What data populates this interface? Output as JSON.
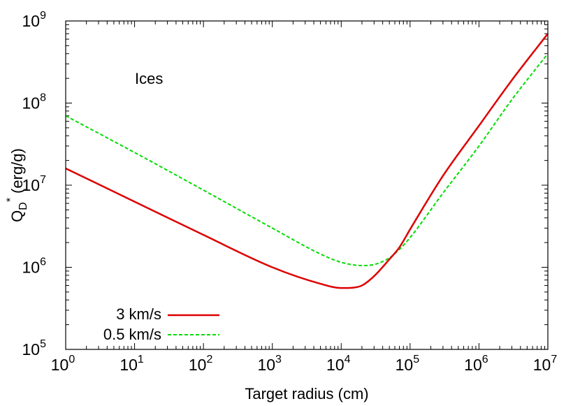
{
  "chart_data": {
    "type": "line",
    "title": "",
    "xlabel": "Target radius (cm)",
    "ylabel": "Q_D^* (erg/g)",
    "ylabel_parts": {
      "base": "Q",
      "sub": "D",
      "sup": "*",
      "unit": "(erg/g)"
    },
    "xscale": "log",
    "yscale": "log",
    "xlim": [
      1,
      10000000
    ],
    "ylim": [
      100000,
      1000000000
    ],
    "x_ticks": [
      {
        "base": "10",
        "exp": "0"
      },
      {
        "base": "10",
        "exp": "1"
      },
      {
        "base": "10",
        "exp": "2"
      },
      {
        "base": "10",
        "exp": "3"
      },
      {
        "base": "10",
        "exp": "4"
      },
      {
        "base": "10",
        "exp": "5"
      },
      {
        "base": "10",
        "exp": "6"
      },
      {
        "base": "10",
        "exp": "7"
      }
    ],
    "y_ticks": [
      {
        "base": "10",
        "exp": "5"
      },
      {
        "base": "10",
        "exp": "6"
      },
      {
        "base": "10",
        "exp": "7"
      },
      {
        "base": "10",
        "exp": "8"
      },
      {
        "base": "10",
        "exp": "9"
      }
    ],
    "grid": false,
    "legend_position": "bottom-left",
    "annotations": [
      {
        "text": "Ices",
        "x": 10,
        "y": 300000000
      }
    ],
    "series": [
      {
        "name": "3 km/s",
        "color": "#dd0000",
        "dash": "solid",
        "x": [
          1,
          10,
          100,
          1000,
          5000,
          10000,
          15000,
          20000,
          30000,
          50000,
          70000,
          100000,
          300000,
          1000000,
          3000000,
          10000000
        ],
        "y": [
          16000000,
          6300000,
          2480000,
          1000000,
          630000,
          560000,
          565000,
          600000,
          780000,
          1250000,
          1750000,
          2900000,
          13000000,
          53000000,
          190000000,
          700000000
        ]
      },
      {
        "name": "0.5 km/s",
        "color": "#00dd00",
        "dash": "dashed",
        "x": [
          1,
          10,
          100,
          1000,
          5000,
          10000,
          20000,
          30000,
          50000,
          70000,
          100000,
          300000,
          1000000,
          3000000,
          10000000
        ],
        "y": [
          70000000,
          25000000,
          8700000,
          3000000,
          1450000,
          1150000,
          1050000,
          1080000,
          1300000,
          1650000,
          2300000,
          8000000,
          30000000,
          110000000,
          400000000
        ]
      }
    ]
  }
}
